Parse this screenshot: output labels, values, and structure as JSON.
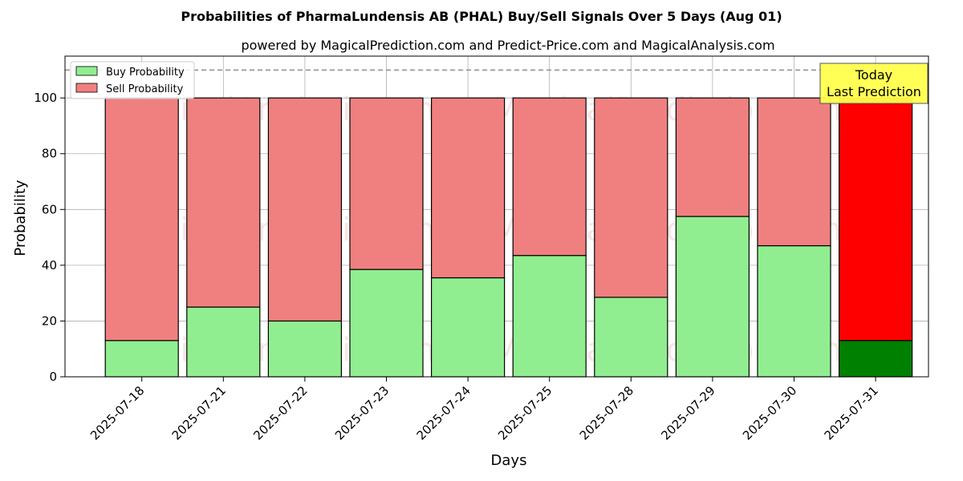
{
  "chart_data": {
    "type": "bar",
    "stacked": true,
    "title": "Probabilities of PharmaLundensis AB (PHAL) Buy/Sell Signals Over 5 Days (Aug 01)",
    "subtitle": "powered by MagicalPrediction.com and Predict-Price.com and MagicalAnalysis.com",
    "xlabel": "Days",
    "ylabel": "Probability",
    "ylim": [
      0,
      115
    ],
    "yticks": [
      0,
      20,
      40,
      60,
      80,
      100
    ],
    "grid": true,
    "reference_line": 110,
    "categories": [
      "2025-07-18",
      "2025-07-21",
      "2025-07-22",
      "2025-07-23",
      "2025-07-24",
      "2025-07-25",
      "2025-07-28",
      "2025-07-29",
      "2025-07-30",
      "2025-07-31"
    ],
    "series": [
      {
        "name": "Buy Probability",
        "values": [
          13,
          25,
          20,
          38.5,
          35.5,
          43.5,
          28.5,
          57.5,
          47,
          13
        ]
      },
      {
        "name": "Sell Probability",
        "values": [
          87,
          75,
          80,
          61.5,
          64.5,
          56.5,
          71.5,
          42.5,
          53,
          87
        ]
      }
    ],
    "legend": {
      "position": "top-left",
      "entries": [
        "Buy Probability",
        "Sell Probability"
      ]
    },
    "annotation": {
      "line1": "Today",
      "line2": "Last Prediction",
      "category": "2025-07-31"
    },
    "watermarks": [
      "MagicalAnalysis.com",
      "MagicalPrediction.com"
    ]
  },
  "colors": {
    "buy": "#90ee90",
    "sell": "#f08080",
    "buy_highlight": "#008000",
    "sell_highlight": "#ff0000",
    "annotation_bg": "#ffff4d",
    "grid": "#b0b0b0"
  }
}
